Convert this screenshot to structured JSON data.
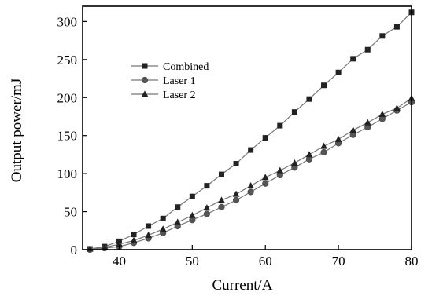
{
  "chart_data": {
    "type": "line",
    "title": "",
    "xlabel": "Current/A",
    "ylabel": "Output power/mJ",
    "xlim": [
      35,
      80
    ],
    "ylim": [
      0,
      320
    ],
    "xticks": [
      40,
      50,
      60,
      70,
      80
    ],
    "yticks": [
      0,
      50,
      100,
      150,
      200,
      250,
      300
    ],
    "grid": false,
    "legend_position": "upper-left",
    "series": [
      {
        "name": "Combined",
        "marker": "square",
        "x": [
          36,
          38,
          40,
          42,
          44,
          46,
          48,
          50,
          52,
          54,
          56,
          58,
          60,
          62,
          64,
          66,
          68,
          70,
          72,
          74,
          76,
          78,
          80
        ],
        "y": [
          1,
          4,
          11,
          20,
          31,
          41,
          56,
          70,
          84,
          99,
          113,
          131,
          147,
          163,
          181,
          198,
          216,
          233,
          251,
          263,
          281,
          293,
          312
        ]
      },
      {
        "name": "Laser 1",
        "marker": "circle",
        "x": [
          36,
          38,
          40,
          42,
          44,
          46,
          48,
          50,
          52,
          54,
          56,
          58,
          60,
          62,
          64,
          66,
          68,
          70,
          72,
          74,
          76,
          78,
          80
        ],
        "y": [
          0,
          2,
          4,
          9,
          15,
          22,
          31,
          39,
          47,
          56,
          65,
          76,
          87,
          98,
          108,
          119,
          128,
          140,
          151,
          161,
          172,
          183,
          194
        ]
      },
      {
        "name": "Laser 2",
        "marker": "triangle",
        "x": [
          36,
          38,
          40,
          42,
          44,
          46,
          48,
          50,
          52,
          54,
          56,
          58,
          60,
          62,
          64,
          66,
          68,
          70,
          72,
          74,
          76,
          78,
          80
        ],
        "y": [
          1,
          3,
          7,
          12,
          19,
          27,
          36,
          45,
          55,
          65,
          73,
          84,
          95,
          104,
          114,
          125,
          136,
          145,
          157,
          167,
          178,
          186,
          199
        ]
      }
    ]
  }
}
